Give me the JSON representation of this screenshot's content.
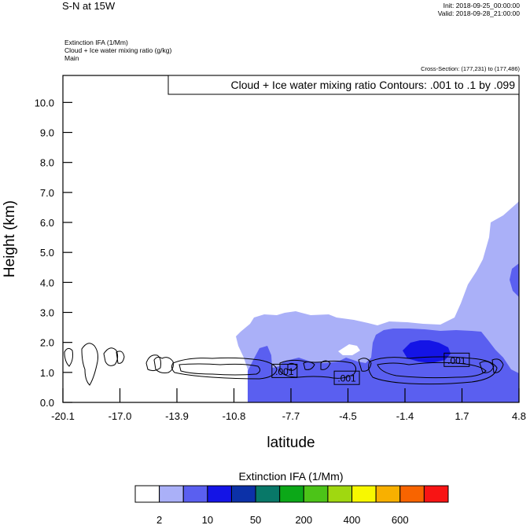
{
  "header": {
    "title": "S-N at 15W",
    "init": "Init: 2018-09-25_00:00:00",
    "valid": "Valid: 2018-09-28_21:00:00",
    "fields": [
      "Extinction IFA   (1/Mm)",
      "Cloud + Ice water mixing ratio   (g/kg)",
      "Main"
    ],
    "cross_section": "Cross-Section: (177,231) to (177,486)"
  },
  "chart_data": {
    "type": "heatmap",
    "title": "S-N at 15W",
    "xlabel": "latitude",
    "ylabel": "Height (km)",
    "xlim": [
      -20.1,
      4.8
    ],
    "ylim": [
      0.0,
      10.9
    ],
    "x_ticks": [
      "-20.1",
      "-17.0",
      "-13.9",
      "-10.8",
      "-7.7",
      "-4.5",
      "-1.4",
      "1.7",
      "4.8"
    ],
    "y_ticks": [
      "0.0",
      "1.0",
      "2.0",
      "3.0",
      "4.0",
      "5.0",
      "6.0",
      "7.0",
      "8.0",
      "9.0",
      "10.0"
    ],
    "contour_info": "Cloud + Ice water mixing ratio Contours: .001 to .1 by .099",
    "contour_labels": [
      {
        "text": ".001",
        "x": -8.0,
        "y": 1.05
      },
      {
        "text": ".001",
        "x": -4.6,
        "y": 0.82
      },
      {
        "text": ".001",
        "x": 1.4,
        "y": 1.42
      }
    ],
    "shaded_regions": [
      {
        "level": "2-10",
        "color": "#aab0f8",
        "x_range": [
          -10.8,
          4.8
        ],
        "y_range": [
          0.0,
          6.1
        ]
      },
      {
        "level": "10-50",
        "color": "#5a5ff0",
        "x_range": [
          -10.3,
          4.8
        ],
        "y_range": [
          0.0,
          2.4
        ]
      },
      {
        "level": "50-100",
        "color": "#1414e6",
        "x_range": [
          -0.6,
          2.2
        ],
        "y_range": [
          1.1,
          2.0
        ]
      }
    ],
    "colorbar": {
      "title": "Extinction IFA  (1/Mm)",
      "colors": [
        "#ffffff",
        "#aab0f8",
        "#5a5ff0",
        "#1414e6",
        "#0c31a8",
        "#087868",
        "#0ca818",
        "#4cc418",
        "#a0d810",
        "#f8f800",
        "#f8b000",
        "#f86400",
        "#f81414"
      ],
      "labels": [
        "2",
        "10",
        "50",
        "200",
        "400",
        "600"
      ]
    }
  }
}
